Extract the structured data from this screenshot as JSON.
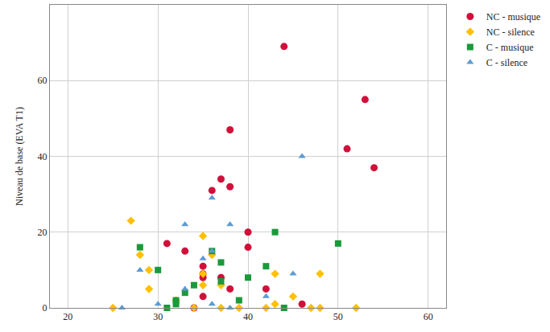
{
  "chart_data": {
    "type": "scatter",
    "y_label": "Niveau de base (EVA T1)",
    "xlim": [
      18,
      62
    ],
    "xticks": [
      20,
      30,
      40,
      50,
      60
    ],
    "ylim": [
      0,
      80
    ],
    "yticks": [
      0,
      20,
      40,
      60
    ],
    "grid": true,
    "legend": "top right",
    "series": [
      {
        "name": "NC - musique",
        "color": "#d0103a",
        "marker": "circle",
        "x": [
          44,
          53,
          51,
          54,
          38,
          36,
          37,
          38,
          40,
          40,
          31,
          33,
          35,
          35,
          37,
          35,
          38,
          42,
          35,
          34,
          46
        ],
        "values": [
          69,
          55,
          42,
          37,
          47,
          31,
          34,
          32,
          20,
          16,
          17,
          15,
          11,
          9,
          8,
          8,
          5,
          5,
          3,
          0,
          1
        ]
      },
      {
        "name": "NC - silence",
        "color": "#ffc000",
        "marker": "diamond",
        "x": [
          27,
          35,
          36,
          28,
          29,
          29,
          32,
          35,
          37,
          35,
          43,
          48,
          45,
          43,
          25,
          37,
          39,
          42,
          47,
          48,
          52,
          34
        ],
        "values": [
          23,
          19,
          14,
          14,
          10,
          5,
          2,
          6,
          6,
          9,
          9,
          9,
          3,
          1,
          0,
          0,
          0,
          0,
          0,
          0,
          0,
          0
        ]
      },
      {
        "name": "C - musique",
        "color": "#1a9a3b",
        "marker": "square",
        "x": [
          28,
          30,
          31,
          32,
          32,
          33,
          34,
          36,
          37,
          37,
          40,
          39,
          42,
          43,
          44,
          50
        ],
        "values": [
          16,
          10,
          0,
          1,
          2,
          4,
          6,
          15,
          12,
          7,
          8,
          2,
          11,
          20,
          0,
          17
        ]
      },
      {
        "name": "C - silence",
        "color": "#5b9bd5",
        "marker": "triangle-up",
        "x": [
          26,
          28,
          30,
          33,
          36,
          38,
          35,
          36,
          36,
          38,
          42,
          45,
          46,
          33
        ],
        "values": [
          0,
          10,
          1,
          22,
          29,
          22,
          13,
          15,
          1,
          0,
          3,
          9,
          40,
          5
        ]
      }
    ]
  }
}
